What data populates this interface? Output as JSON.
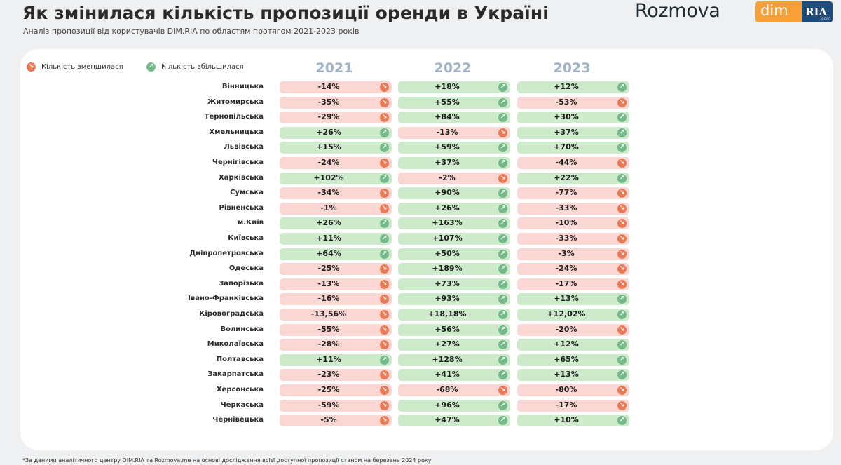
{
  "header": {
    "title": "Як змінилася кількість пропозиції оренди в Україні",
    "subtitle": "Аналіз пропозиції від користувачів DIM.RIA по областям протягом 2021-2023 років"
  },
  "brand": {
    "rozmova": "Rozmova",
    "dim": "dim",
    "ria": "RIA",
    "ria_com": ".com"
  },
  "legend": {
    "decreased": "Кількість зменшилася",
    "increased": "Кількість збільшилася",
    "decreased_icon": "arrow-down-right-icon",
    "increased_icon": "arrow-up-right-icon"
  },
  "colors": {
    "decrease_bg": "#fbd7d3",
    "decrease_icon": "#ea7a55",
    "increase_bg": "#cdeacb",
    "increase_icon": "#74b98a",
    "year_header": "#9fb4c7"
  },
  "chart_data": {
    "type": "table",
    "columns": [
      "2021",
      "2022",
      "2023"
    ],
    "rows": [
      {
        "region": "Вінницька",
        "values": [
          "-14%",
          "+18%",
          "+12%"
        ]
      },
      {
        "region": "Житомирська",
        "values": [
          "-35%",
          "+55%",
          "-53%"
        ]
      },
      {
        "region": "Тернопільська",
        "values": [
          "-29%",
          "+84%",
          "+30%"
        ]
      },
      {
        "region": "Хмельницька",
        "values": [
          "+26%",
          "-13%",
          "+37%"
        ]
      },
      {
        "region": "Львівська",
        "values": [
          "+15%",
          "+59%",
          "+70%"
        ]
      },
      {
        "region": "Чернігівська",
        "values": [
          "-24%",
          "+37%",
          "-44%"
        ]
      },
      {
        "region": "Харківська",
        "values": [
          "+102%",
          "-2%",
          "+22%"
        ]
      },
      {
        "region": "Сумська",
        "values": [
          "-34%",
          "+90%",
          "-77%"
        ]
      },
      {
        "region": "Рівненська",
        "values": [
          "-1%",
          "+26%",
          "-33%"
        ]
      },
      {
        "region": "м.Київ",
        "values": [
          "+26%",
          "+163%",
          "-10%"
        ]
      },
      {
        "region": "Київська",
        "values": [
          "+11%",
          "+107%",
          "-33%"
        ]
      },
      {
        "region": "Дніпропетровська",
        "values": [
          "+64%",
          "+50%",
          "-3%"
        ]
      },
      {
        "region": "Одеська",
        "values": [
          "-25%",
          "+189%",
          "-24%"
        ]
      },
      {
        "region": "Запорізька",
        "values": [
          "-13%",
          "+73%",
          "-17%"
        ]
      },
      {
        "region": "Івано-Франківська",
        "values": [
          "-16%",
          "+93%",
          "+13%"
        ]
      },
      {
        "region": "Кіровоградська",
        "values": [
          "-13,56%",
          "+18,18%",
          "+12,02%"
        ]
      },
      {
        "region": "Волинська",
        "values": [
          "-55%",
          "+56%",
          "-20%"
        ]
      },
      {
        "region": "Миколаївська",
        "values": [
          "-28%",
          "+27%",
          "+12%"
        ]
      },
      {
        "region": "Полтавська",
        "values": [
          "+11%",
          "+128%",
          "+65%"
        ]
      },
      {
        "region": "Закарпатська",
        "values": [
          "-23%",
          "+41%",
          "+13%"
        ]
      },
      {
        "region": "Херсонська",
        "values": [
          "-25%",
          "-68%",
          "-80%"
        ]
      },
      {
        "region": "Черкаська",
        "values": [
          "-59%",
          "+96%",
          "-17%"
        ]
      },
      {
        "region": "Чернівецька",
        "values": [
          "-5%",
          "+47%",
          "+10%"
        ]
      }
    ]
  },
  "footnote": "*За даними аналітичного центру DIM.RIA та Rozmova.me на основі дослідження всієї доступної пропозиції станом на березень 2024 року"
}
